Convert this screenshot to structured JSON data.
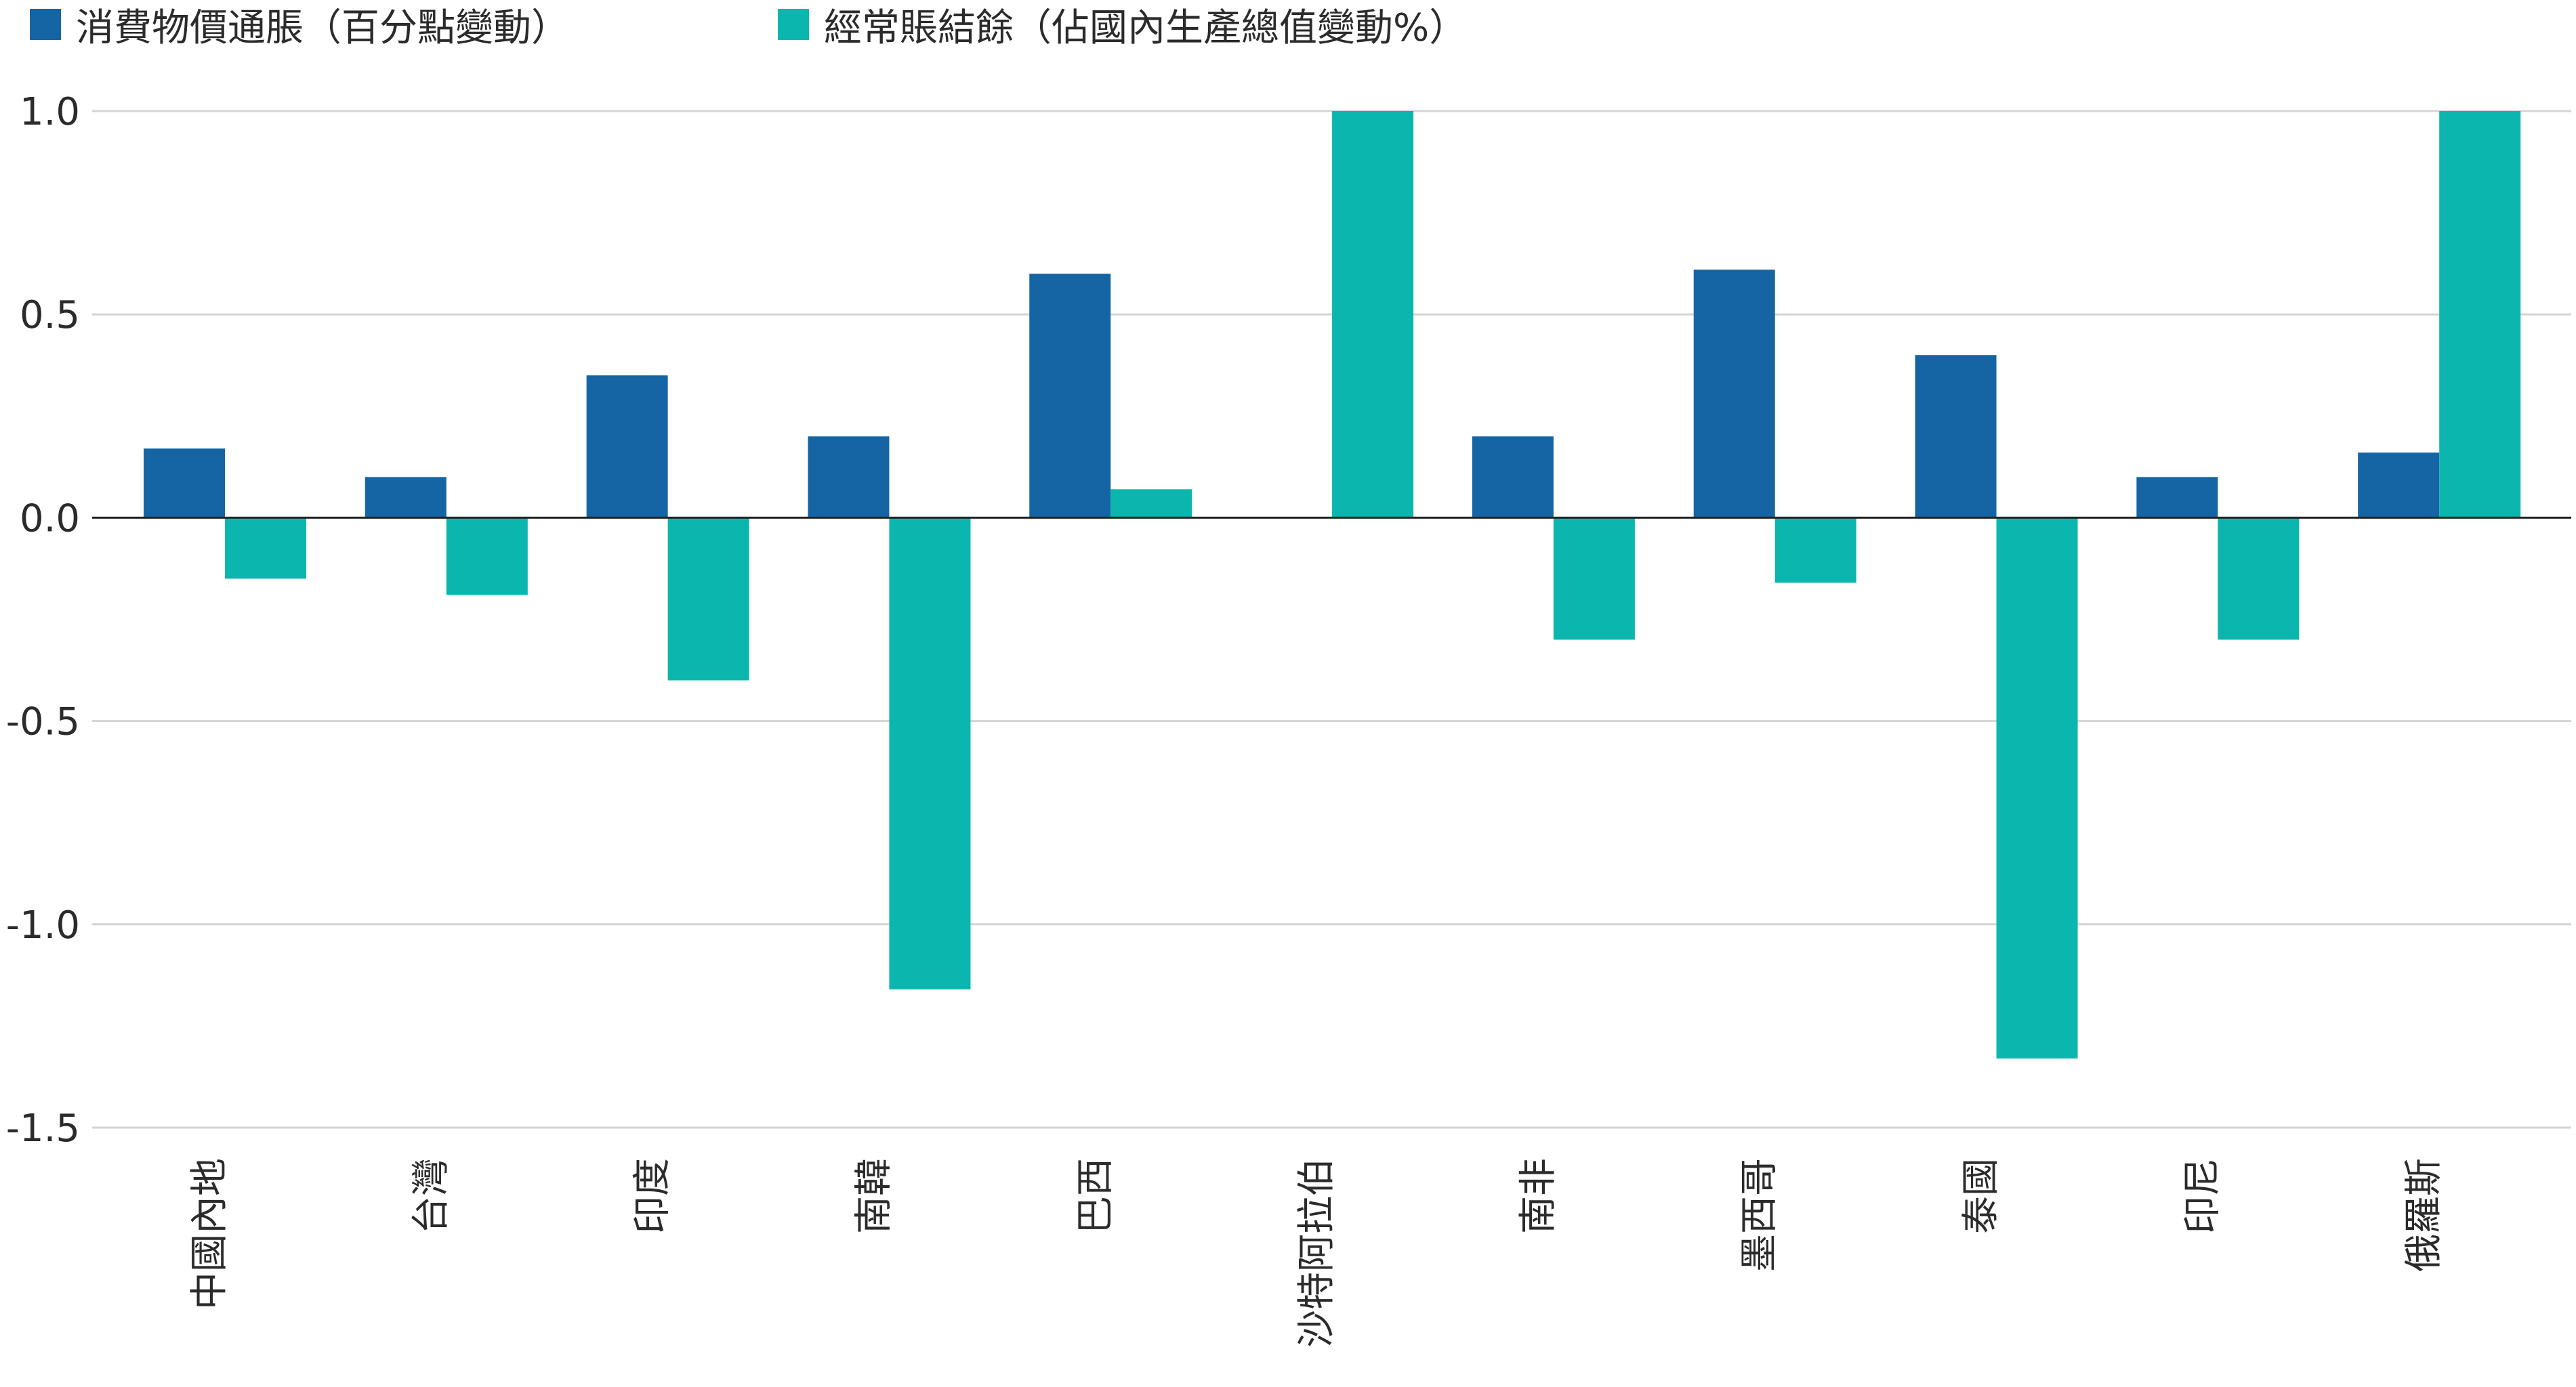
{
  "chart_data": {
    "type": "bar",
    "categories": [
      "中國內地",
      "台灣",
      "印度",
      "南韓",
      "巴西",
      "沙特阿拉伯",
      "南非",
      "墨西哥",
      "泰國",
      "印尼",
      "俄羅斯"
    ],
    "series": [
      {
        "name": "消費物價通脹（百分點變動）",
        "color": "#1565a5",
        "values": [
          0.17,
          0.1,
          0.35,
          0.2,
          0.6,
          null,
          0.2,
          0.61,
          0.4,
          0.1,
          0.16
        ]
      },
      {
        "name": "經常賬結餘（佔國內生產總值變動%）",
        "color": "#0ab6ad",
        "values": [
          -0.15,
          -0.19,
          -0.4,
          -1.16,
          0.07,
          1.0,
          -0.3,
          -0.16,
          -1.33,
          -0.3,
          1.0
        ]
      }
    ],
    "yticks": [
      "1.0",
      "0.5",
      "0.0",
      "-0.5",
      "-1.0",
      "-1.5"
    ],
    "ylim": [
      -1.5,
      1.0
    ],
    "grid": true,
    "legend_position": "top-left",
    "xlabel": "",
    "ylabel": "",
    "title": ""
  }
}
